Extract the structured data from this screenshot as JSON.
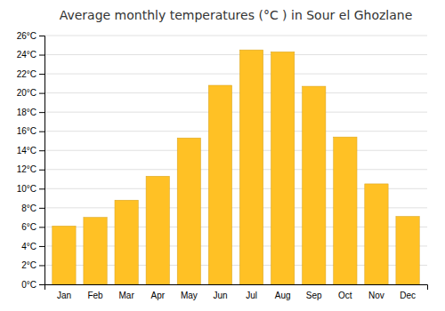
{
  "chart_data": {
    "type": "bar",
    "title": "Average monthly temperatures (°C ) in Sour el Ghozlane",
    "categories": [
      "Jan",
      "Feb",
      "Mar",
      "Apr",
      "May",
      "Jun",
      "Jul",
      "Aug",
      "Sep",
      "Oct",
      "Nov",
      "Dec"
    ],
    "values": [
      6.1,
      7.0,
      8.8,
      11.3,
      15.3,
      20.8,
      24.5,
      24.3,
      20.7,
      15.4,
      10.5,
      7.1
    ],
    "color": "#FFC125",
    "ylim": [
      0,
      26
    ],
    "yticks": [
      {
        "value": 0,
        "label": "0°C"
      },
      {
        "value": 2,
        "label": "2°C"
      },
      {
        "value": 4,
        "label": "4°C"
      },
      {
        "value": 6,
        "label": "6°C"
      },
      {
        "value": 8,
        "label": "8°C"
      },
      {
        "value": 10,
        "label": "10°C"
      },
      {
        "value": 12,
        "label": "12°C"
      },
      {
        "value": 14,
        "label": "14°C"
      },
      {
        "value": 16,
        "label": "16°C"
      },
      {
        "value": 18,
        "label": "18°C"
      },
      {
        "value": 20,
        "label": "20°C"
      },
      {
        "value": 22,
        "label": "22°C"
      },
      {
        "value": 24,
        "label": "24°C"
      },
      {
        "value": 26,
        "label": "26°C"
      }
    ],
    "grid": true
  }
}
